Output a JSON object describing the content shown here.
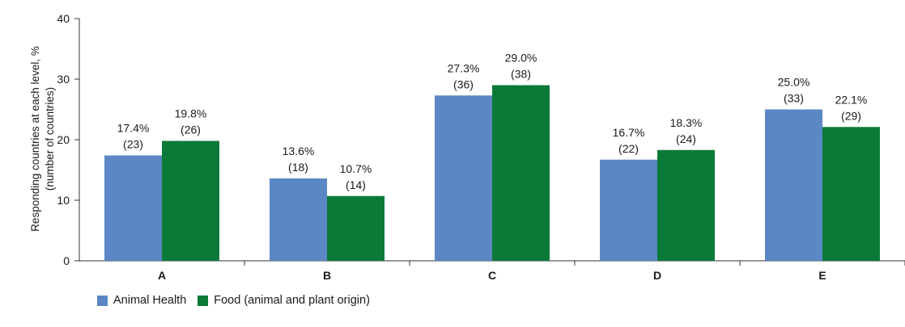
{
  "chart_data": {
    "type": "bar",
    "categories": [
      "A",
      "B",
      "C",
      "D",
      "E"
    ],
    "series": [
      {
        "name": "Animal Health",
        "color": "#5b87c5",
        "values": [
          17.4,
          13.6,
          27.3,
          16.7,
          25.0
        ],
        "labels_pct": [
          "17.4%",
          "13.6%",
          "27.3%",
          "16.7%",
          "25.0%"
        ],
        "labels_count": [
          "(23)",
          "(18)",
          "(36)",
          "(22)",
          "(33)"
        ]
      },
      {
        "name": "Food (animal and plant origin)",
        "color": "#0b7a39",
        "values": [
          19.8,
          10.7,
          29.0,
          18.3,
          22.1
        ],
        "labels_pct": [
          "19.8%",
          "10.7%",
          "29.0%",
          "18.3%",
          "22.1%"
        ],
        "labels_count": [
          "(26)",
          "(14)",
          "(38)",
          "(24)",
          "(29)"
        ]
      }
    ],
    "ylabel_line1": "Responding countries at each level, %",
    "ylabel_line2": "(number of countries)",
    "ylim": [
      0,
      40
    ],
    "yticks": [
      "0",
      "10",
      "20",
      "30",
      "40"
    ],
    "legend_position": "bottom-left"
  }
}
